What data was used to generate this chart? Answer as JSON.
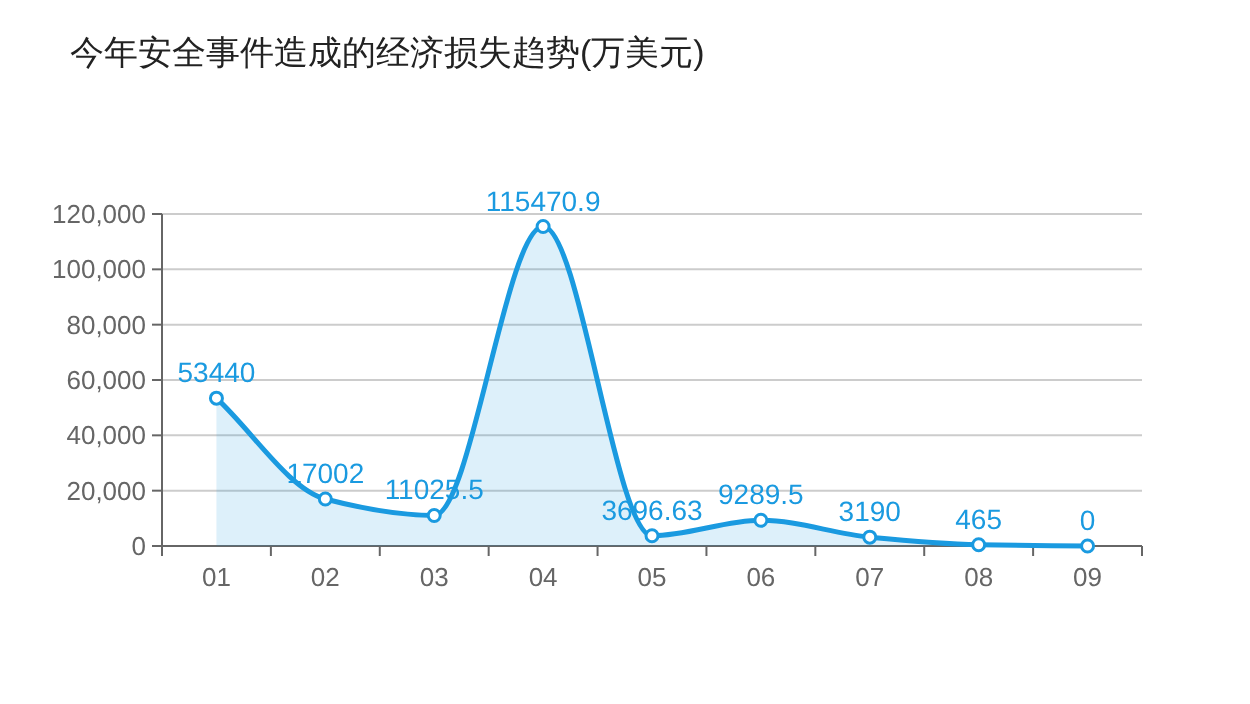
{
  "chart_data": {
    "type": "area",
    "title": "今年安全事件造成的经济损失趋势(万美元)",
    "categories": [
      "01",
      "02",
      "03",
      "04",
      "05",
      "06",
      "07",
      "08",
      "09"
    ],
    "values": [
      53440,
      17002,
      11025.5,
      115470.9,
      3696.63,
      9289.5,
      3190,
      465,
      0
    ],
    "color": "#1a9ae0",
    "ylim": [
      0,
      120000
    ],
    "yticks": [
      0,
      {
        "value": 20000,
        "label": "20,000"
      },
      {
        "value": 40000,
        "label": "40,000"
      },
      {
        "value": 60000,
        "label": "60,000"
      },
      {
        "value": 80000,
        "label": "80,000"
      },
      {
        "value": 100000,
        "label": "100,000"
      },
      {
        "value": 120000,
        "label": "120,000"
      }
    ],
    "grid": "y",
    "marker": "circle",
    "data_labels": true
  }
}
